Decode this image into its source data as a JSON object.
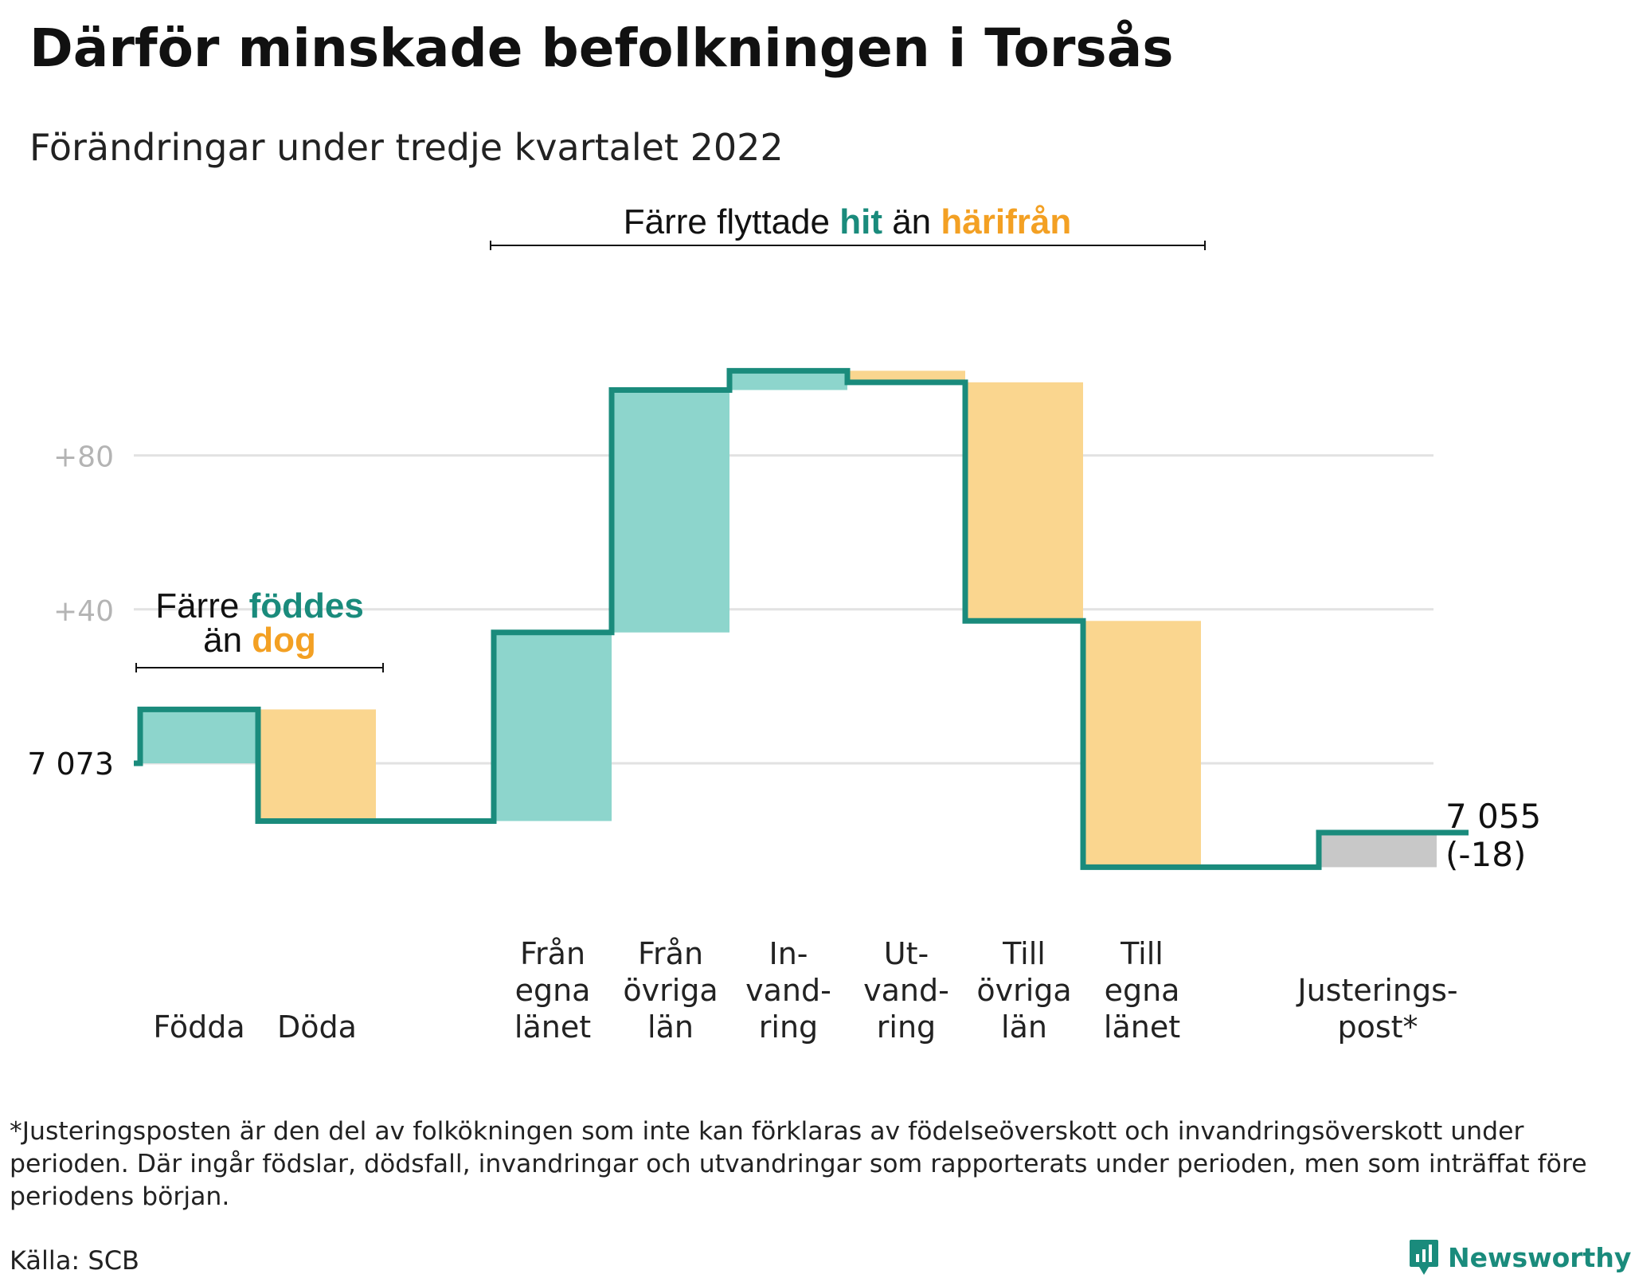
{
  "title": "Därför minskade befolkningen i Torsås",
  "subtitle": "Förändringar under tredje kvartalet 2022",
  "colors": {
    "teal": "#1a8b7c",
    "teal_fill": "#8dd5cc",
    "orange": "#f3a023",
    "orange_fill": "#fad68f",
    "gray_fill": "#c8c8c8",
    "grid": "#e2e2e2"
  },
  "chart_data": {
    "type": "waterfall",
    "start": {
      "value": 7073,
      "label": "7 073"
    },
    "end": {
      "value": 7055,
      "label": "7 055",
      "change_label": "(-18)"
    },
    "y_tick_labels": [
      {
        "offset": 80,
        "label": "+80"
      },
      {
        "offset": 40,
        "label": "+40"
      }
    ],
    "ylim": [
      -28,
      105
    ],
    "steps": [
      {
        "label_lines": [
          "Födda"
        ],
        "value": 14,
        "kind": "in"
      },
      {
        "label_lines": [
          "Döda"
        ],
        "value": -29,
        "kind": "out"
      },
      {
        "label_lines": [],
        "value": 0,
        "kind": "spacer"
      },
      {
        "label_lines": [
          "Från",
          "egna",
          "länet"
        ],
        "value": 49,
        "kind": "in"
      },
      {
        "label_lines": [
          "Från",
          "övriga",
          "län"
        ],
        "value": 63,
        "kind": "in"
      },
      {
        "label_lines": [
          "In-",
          "vand-",
          "ring"
        ],
        "value": 5,
        "kind": "in"
      },
      {
        "label_lines": [
          "Ut-",
          "vand-",
          "ring"
        ],
        "value": -3,
        "kind": "out"
      },
      {
        "label_lines": [
          "Till",
          "övriga",
          "län"
        ],
        "value": -62,
        "kind": "out"
      },
      {
        "label_lines": [
          "Till",
          "egna",
          "länet"
        ],
        "value": -64,
        "kind": "out"
      },
      {
        "label_lines": [],
        "value": 0,
        "kind": "spacer"
      },
      {
        "label_lines": [
          "Justerings-",
          "post*"
        ],
        "value": 9,
        "kind": "adjust"
      }
    ],
    "annotations": [
      {
        "id": "births",
        "lines": [
          [
            {
              "text": "Färre ",
              "color": "#111111"
            },
            {
              "text": "föddes",
              "color": "#1a8b7c"
            }
          ],
          [
            {
              "text": "än ",
              "color": "#111111"
            },
            {
              "text": "dog",
              "color": "#f3a023"
            }
          ]
        ]
      },
      {
        "id": "moves",
        "lines": [
          [
            {
              "text": "Färre flyttade ",
              "color": "#111111"
            },
            {
              "text": "hit",
              "color": "#1a8b7c"
            },
            {
              "text": " än ",
              "color": "#111111"
            },
            {
              "text": "härifrån",
              "color": "#f3a023"
            }
          ]
        ]
      }
    ]
  },
  "footnote": "*Justeringsposten är den del av folkökningen som inte kan förklaras av födelseöverskott och invandringsöverskott under perioden. Där ingår födslar, dödsfall, invandringar och utvandringar som rapporterats under perioden, men som inträffat före periodens början.",
  "source": "Källa: SCB",
  "brand": {
    "name": "Newsworthy",
    "icon": "newsworthy-logo-icon"
  }
}
